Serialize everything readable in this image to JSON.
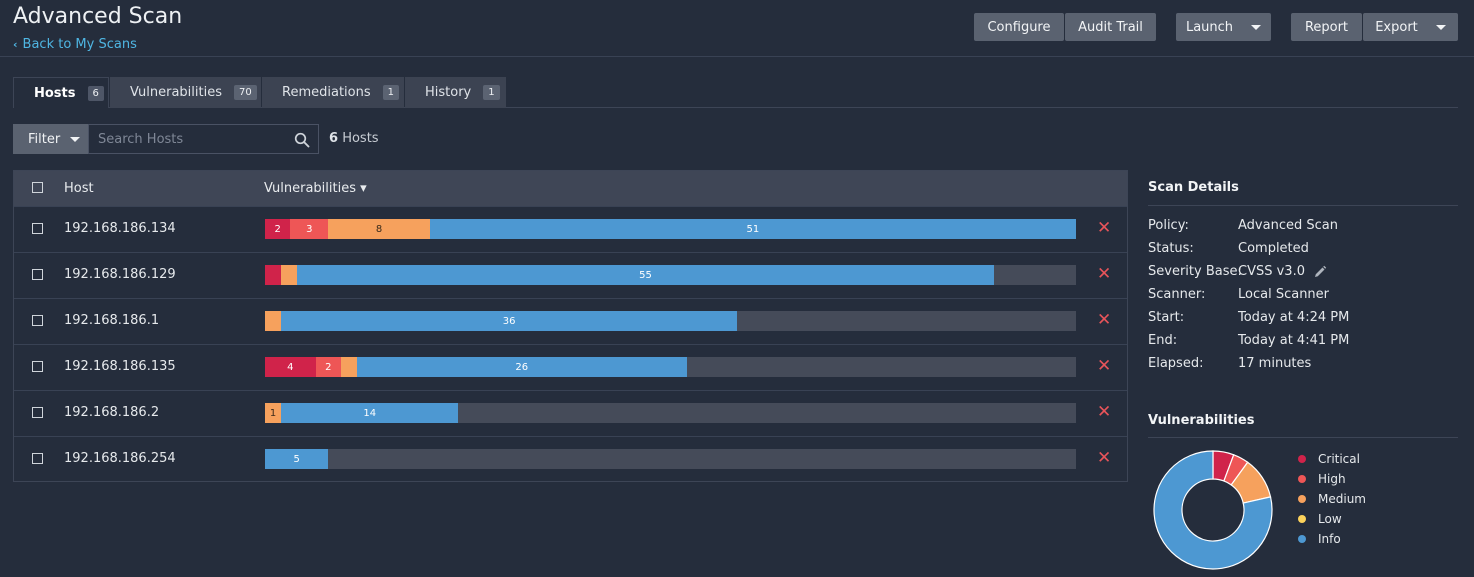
{
  "header": {
    "title": "Advanced Scan",
    "back_label": "Back to My Scans",
    "buttons": {
      "configure": "Configure",
      "audit_trail": "Audit Trail",
      "launch": "Launch",
      "report": "Report",
      "export": "Export"
    }
  },
  "tabs": [
    {
      "label": "Hosts",
      "count": "6",
      "active": true
    },
    {
      "label": "Vulnerabilities",
      "count": "70"
    },
    {
      "label": "Remediations",
      "count": "1"
    },
    {
      "label": "History",
      "count": "1"
    }
  ],
  "filter": {
    "button_label": "Filter",
    "search_placeholder": "Search Hosts",
    "host_count_number": "6",
    "host_count_label": "Hosts"
  },
  "table": {
    "columns": {
      "host": "Host",
      "vulnerabilities": "Vulnerabilities ▾"
    },
    "max_total": 64,
    "rows": [
      {
        "host": "192.168.186.134",
        "segments": [
          {
            "severity": "critical",
            "count": 2,
            "label": "2"
          },
          {
            "severity": "high",
            "count": 3,
            "label": "3"
          },
          {
            "severity": "medium",
            "count": 8,
            "label": "8"
          },
          {
            "severity": "info",
            "count": 51,
            "label": "51"
          }
        ]
      },
      {
        "host": "192.168.186.129",
        "segments": [
          {
            "severity": "critical",
            "count": 1,
            "label": ""
          },
          {
            "severity": "medium",
            "count": 1,
            "label": ""
          },
          {
            "severity": "info",
            "count": 55,
            "label": "55"
          }
        ]
      },
      {
        "host": "192.168.186.1",
        "segments": [
          {
            "severity": "medium",
            "count": 1,
            "label": ""
          },
          {
            "severity": "info",
            "count": 36,
            "label": "36"
          }
        ]
      },
      {
        "host": "192.168.186.135",
        "segments": [
          {
            "severity": "critical",
            "count": 4,
            "label": "4"
          },
          {
            "severity": "high",
            "count": 2,
            "label": "2"
          },
          {
            "severity": "medium",
            "count": 1,
            "label": ""
          },
          {
            "severity": "info",
            "count": 26,
            "label": "26"
          }
        ]
      },
      {
        "host": "192.168.186.2",
        "segments": [
          {
            "severity": "medium",
            "count": 1,
            "label": "1"
          },
          {
            "severity": "info",
            "count": 14,
            "label": "14"
          }
        ]
      },
      {
        "host": "192.168.186.254",
        "segments": [
          {
            "severity": "info",
            "count": 5,
            "label": "5"
          }
        ]
      }
    ]
  },
  "colors": {
    "critical": "#d0234a",
    "high": "#ee5656",
    "medium": "#f6a15d",
    "low": "#fcd25b",
    "info": "#4d98d2",
    "accent_link": "#4fb6e3",
    "delete": "#e8545a"
  },
  "scan_details": {
    "title": "Scan Details",
    "items": [
      {
        "label": "Policy:",
        "value": "Advanced Scan"
      },
      {
        "label": "Status:",
        "value": "Completed"
      },
      {
        "label": "Severity Base:",
        "value": "CVSS v3.0"
      },
      {
        "label": "Scanner:",
        "value": "Local Scanner"
      },
      {
        "label": "Start:",
        "value": "Today at 4:24 PM"
      },
      {
        "label": "End:",
        "value": "Today at 4:41 PM"
      },
      {
        "label": "Elapsed:",
        "value": "17 minutes"
      }
    ]
  },
  "vuln_chart": {
    "title": "Vulnerabilities",
    "legend": [
      "Critical",
      "High",
      "Medium",
      "Low",
      "Info"
    ]
  },
  "chart_data": {
    "type": "pie",
    "categories": [
      "Critical",
      "High",
      "Medium",
      "Low",
      "Info"
    ],
    "values": [
      4,
      3,
      8,
      0,
      55
    ]
  },
  "icons": {
    "search": "search-icon",
    "edit": "pencil-icon",
    "delete": "close-icon",
    "back": "chevron-left-icon"
  }
}
